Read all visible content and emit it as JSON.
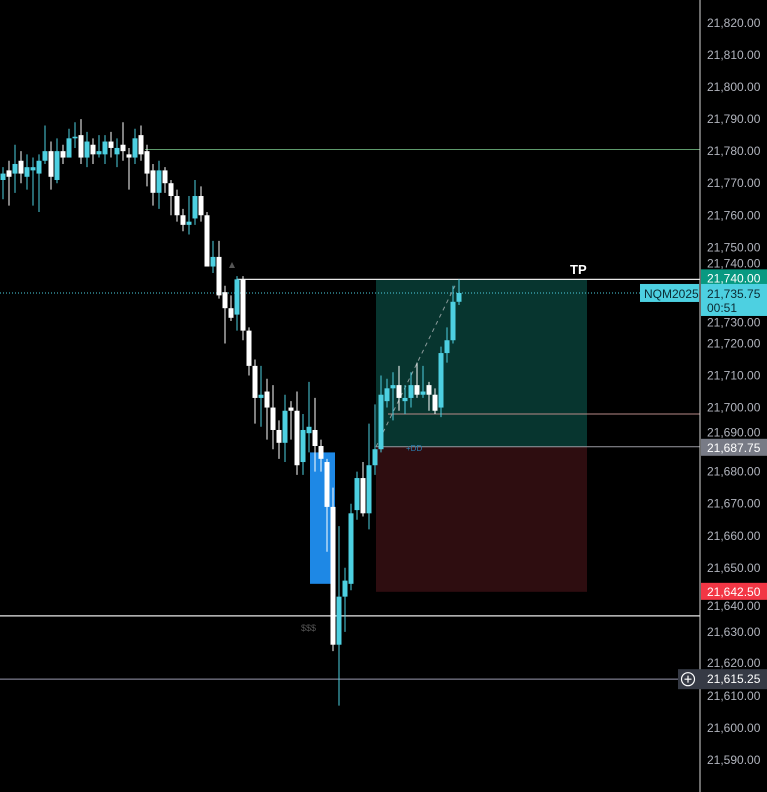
{
  "chart_data": {
    "type": "candlestick",
    "symbol": "NQM2025",
    "countdown": "00:51",
    "ylim": [
      21585,
      21825
    ],
    "y_ticks": [
      "21,820.00",
      "21,810.00",
      "21,800.00",
      "21,790.00",
      "21,780.00",
      "21,770.00",
      "21,760.00",
      "21,750.00",
      "21,740.00",
      "21,730.00",
      "21,720.00",
      "21,710.00",
      "21,700.00",
      "21,690.00",
      "21,680.00",
      "21,670.00",
      "21,660.00",
      "21,650.00",
      "21,640.00",
      "21,630.00",
      "21,620.00",
      "21,610.00",
      "21,600.00",
      "21,590.00"
    ],
    "y_tick_values": [
      21820,
      21810,
      21800,
      21790,
      21780,
      21770,
      21760,
      21750,
      21740,
      21730,
      21720,
      21710,
      21700,
      21690,
      21680,
      21670,
      21660,
      21650,
      21640,
      21630,
      21620,
      21610,
      21600,
      21590
    ],
    "candles": [
      [
        21771,
        21775,
        21765,
        21773
      ],
      [
        21774,
        21777,
        21763,
        21772
      ],
      [
        21773,
        21782,
        21767,
        21776
      ],
      [
        21777,
        21780,
        21770,
        21773
      ],
      [
        21772,
        21779,
        21768,
        21775
      ],
      [
        21774,
        21778,
        21763,
        21775
      ],
      [
        21773,
        21779,
        21761,
        21777
      ],
      [
        21777,
        21788,
        21776,
        21780
      ],
      [
        21780,
        21783,
        21768,
        21772
      ],
      [
        21771,
        21784,
        21770,
        21780
      ],
      [
        21780,
        21782,
        21776,
        21778
      ],
      [
        21778,
        21787,
        21778,
        21784
      ],
      [
        21784,
        21789,
        21781,
        21784.5
      ],
      [
        21785,
        21790,
        21776,
        21778
      ],
      [
        21778,
        21786,
        21775,
        21783
      ],
      [
        21782,
        21784,
        21776,
        21779
      ],
      [
        21779,
        21785,
        21778,
        21780
      ],
      [
        21779,
        21785,
        21776,
        21783
      ],
      [
        21783,
        21786,
        21778,
        21781
      ],
      [
        21779,
        21784,
        21775,
        21781
      ],
      [
        21782,
        21789,
        21777,
        21780
      ],
      [
        21779,
        21781,
        21768,
        21778
      ],
      [
        21778,
        21787,
        21776,
        21784
      ],
      [
        21785,
        21788,
        21777,
        21779
      ],
      [
        21780,
        21782,
        21769,
        21773
      ],
      [
        21774,
        21776,
        21763,
        21767
      ],
      [
        21767,
        21777,
        21762,
        21774
      ],
      [
        21774,
        21775,
        21767,
        21770
      ],
      [
        21770,
        21771,
        21760,
        21766
      ],
      [
        21766,
        21768,
        21758,
        21760
      ],
      [
        21760,
        21762,
        21755,
        21757
      ],
      [
        21757,
        21766,
        21754,
        21758
      ],
      [
        21759,
        21771,
        21757,
        21766
      ],
      [
        21766,
        21769,
        21758,
        21760
      ],
      [
        21760,
        21761,
        21744,
        21744
      ],
      [
        21744,
        21752,
        21742,
        21747
      ],
      [
        21747,
        21752,
        21734,
        21735
      ],
      [
        21736,
        21738,
        21720,
        21731
      ],
      [
        21731,
        21735,
        21727,
        21728
      ],
      [
        21729,
        21741,
        21724,
        21740
      ],
      [
        21740,
        21741,
        21721,
        21724
      ],
      [
        21724,
        21725,
        21710,
        21713
      ],
      [
        21713,
        21715,
        21695,
        21703
      ],
      [
        21703,
        21713,
        21694,
        21704
      ],
      [
        21705,
        21709,
        21690,
        21700
      ],
      [
        21700,
        21707,
        21687,
        21693
      ],
      [
        21693,
        21696,
        21684,
        21689
      ],
      [
        21689,
        21704,
        21683,
        21699
      ],
      [
        21700,
        21702,
        21690,
        21699
      ],
      [
        21699,
        21705,
        21679,
        21682
      ],
      [
        21683,
        21698,
        21679,
        21693
      ],
      [
        21692,
        21708,
        21686,
        21694
      ],
      [
        21693,
        21703,
        21680,
        21688
      ],
      [
        21688,
        21690,
        21680,
        21684
      ],
      [
        21683,
        21684,
        21655,
        21669
      ],
      [
        21669,
        21675,
        21624,
        21626
      ],
      [
        21626,
        21663,
        21607,
        21641
      ],
      [
        21641,
        21650,
        21630,
        21646
      ],
      [
        21645,
        21670,
        21643,
        21667
      ],
      [
        21668,
        21680,
        21665,
        21678
      ],
      [
        21678,
        21683,
        21666,
        21667
      ],
      [
        21667,
        21695,
        21662,
        21682
      ],
      [
        21682,
        21701,
        21679,
        21687
      ],
      [
        21687,
        21710,
        21686,
        21704
      ],
      [
        21702,
        21709,
        21700,
        21706
      ],
      [
        21706,
        21711,
        21696,
        21707
      ],
      [
        21707,
        21713,
        21699,
        21703
      ],
      [
        21702,
        21707,
        21698,
        21703
      ],
      [
        21703,
        21711,
        21700,
        21707
      ],
      [
        21707,
        21714,
        21703,
        21704
      ],
      [
        21704,
        21713,
        21703,
        21705
      ],
      [
        21707,
        21708,
        21699,
        21704
      ],
      [
        21704,
        21706,
        21698,
        21699
      ],
      [
        21700,
        21719,
        21697,
        21717
      ],
      [
        21717,
        21725,
        21714,
        21721
      ],
      [
        21721,
        21738,
        21720,
        21733
      ],
      [
        21733,
        21740,
        21732,
        21735.75
      ]
    ],
    "price_labels": {
      "tp": {
        "text": "21,740.00",
        "value": 21740,
        "color": "#089981"
      },
      "last": {
        "text": "21,735.75",
        "value": 21735.75,
        "color": "#4dd0e1"
      },
      "entry": {
        "text": "21,687.75",
        "value": 21687.75,
        "color": "#787b86"
      },
      "stop": {
        "text": "21,642.50",
        "value": 21642.5,
        "color": "#f23645"
      },
      "crosshair": {
        "text": "21,615.25",
        "value": 21615.25,
        "color": "#363a45"
      }
    },
    "annotations": {
      "tp_text": "TP",
      "liquidity_text": "$$$",
      "dd_text": "+DD"
    },
    "levels": {
      "green_level": 21780.5,
      "white_level_high": 21740,
      "white_level_low": 21635,
      "red_level": 21698,
      "crosshair_level": 21615.25
    },
    "order_block": {
      "top": 21686,
      "bottom": 21645,
      "color": "#1e88e5"
    },
    "position": {
      "target": 21740,
      "entry": 21687.75,
      "stop": 21642.5
    },
    "colors": {
      "up": "#4dd0e1",
      "down": "#ffffff",
      "profit_zone": "#07352f",
      "loss_zone": "#2e0d10"
    }
  }
}
